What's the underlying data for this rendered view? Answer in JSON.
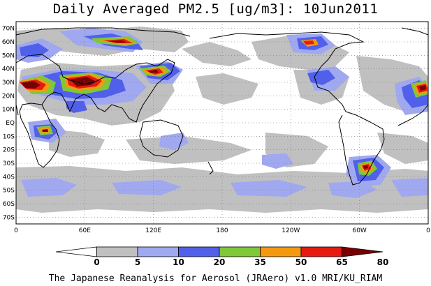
{
  "title": "Daily Averaged PM2.5 [ug/m3]: 10Jun2011",
  "footer": "The Japanese Reanalysis for Aerosol (JRAero) v1.0 MRI/KU_RIAM",
  "map": {
    "projection": "equirectangular",
    "lon_range": [
      0,
      360
    ],
    "lat_range": [
      -75,
      75
    ],
    "lat_ticks": [
      "70N",
      "60N",
      "50N",
      "40N",
      "30N",
      "20N",
      "10N",
      "EQ",
      "10S",
      "20S",
      "30S",
      "40S",
      "50S",
      "60S",
      "70S"
    ],
    "lon_ticks": [
      "0",
      "60E",
      "120E",
      "180",
      "120W",
      "60W",
      "0"
    ],
    "gridlines": "dotted"
  },
  "colorbar": {
    "labels": [
      "0",
      "5",
      "10",
      "20",
      "35",
      "50",
      "65",
      "80"
    ],
    "colors": [
      "#ffffff",
      "#c0c0c0",
      "#a0a8f0",
      "#5060ea",
      "#80c838",
      "#f59a10",
      "#e81a10",
      "#780000"
    ]
  },
  "field_colors": {
    "level_5": "#c0c0c0",
    "level_10": "#a0a8f0",
    "level_20": "#5060ea",
    "level_35": "#80c838",
    "level_50": "#f59a10",
    "level_65": "#e81a10",
    "level_80": "#780000"
  }
}
